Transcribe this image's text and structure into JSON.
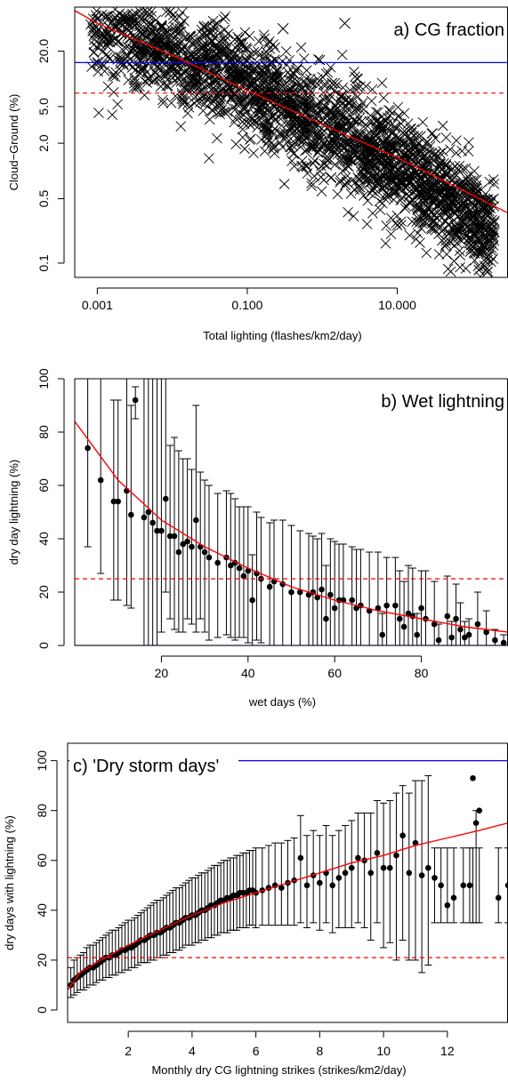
{
  "chart_data": [
    {
      "type": "scatter",
      "title": "a) CG fraction",
      "xlabel": "Total lighting (flashes/km2/day)",
      "ylabel": "Cloud−Ground (%)",
      "xscale": "log",
      "yscale": "log",
      "xlim": [
        0.0005,
        300
      ],
      "ylim": [
        0.07,
        60
      ],
      "xticks": [
        0.001,
        0.1,
        10
      ],
      "xtick_labels": [
        "0.001",
        "0.100",
        "10.000"
      ],
      "yticks": [
        0.1,
        0.5,
        2,
        5,
        20
      ],
      "ytick_labels": [
        "0.1",
        "0.5",
        "2.0",
        "5.0",
        "20.0"
      ],
      "marker": "x",
      "legend": "none",
      "grid": false,
      "reference_lines": [
        {
          "y": 15,
          "color": "#0000ff",
          "style": "solid"
        },
        {
          "y": 7,
          "color": "#ff0000",
          "style": "dashed"
        }
      ],
      "fit_curve": {
        "color": "#ff0000",
        "x": [
          0.0005,
          0.001,
          0.01,
          0.1,
          1,
          10,
          100,
          300
        ],
        "y": [
          55,
          40,
          18,
          7.5,
          3.2,
          1.4,
          0.55,
          0.35
        ]
      },
      "point_cloud": {
        "count": 2500,
        "trend": [
          [
            0.002,
            32
          ],
          [
            0.1,
            8
          ],
          [
            10,
            1.2
          ],
          [
            100,
            0.3
          ]
        ],
        "max_x": 200,
        "note_points": [
          [
            0.003,
            50
          ],
          [
            0.3,
            35
          ],
          [
            2,
            40
          ]
        ]
      }
    },
    {
      "type": "scatter",
      "title": "b) Wet lightning",
      "xlabel": "wet days (%)",
      "ylabel": "dry day lightning (%)",
      "xlim": [
        0,
        100
      ],
      "ylim": [
        0,
        100
      ],
      "xticks": [
        20,
        40,
        60,
        80
      ],
      "yticks": [
        0,
        20,
        40,
        60,
        80,
        100
      ],
      "legend": "none",
      "grid": false,
      "reference_lines": [
        {
          "y": 25,
          "color": "#ff0000",
          "style": "dashed"
        },
        {
          "y": 0,
          "color": "#0000ff",
          "style": "solid"
        }
      ],
      "fit_curve": {
        "color": "#ff0000",
        "x": [
          0,
          10,
          20,
          30,
          40,
          50,
          60,
          70,
          80,
          90,
          100
        ],
        "y": [
          84,
          62,
          47,
          37,
          29,
          22,
          17,
          13,
          10,
          7,
          5
        ]
      },
      "points": {
        "x": [
          3,
          6,
          9,
          10,
          12,
          13,
          14,
          16,
          17,
          18,
          19,
          20,
          21,
          22,
          23,
          24,
          25,
          26,
          27,
          28,
          29,
          30,
          31,
          33,
          35,
          36,
          37,
          38,
          39,
          40,
          41,
          42,
          43,
          45,
          46,
          48,
          50,
          52,
          54,
          55,
          56,
          57,
          58,
          59,
          60,
          61,
          62,
          64,
          65,
          66,
          68,
          70,
          71,
          72,
          74,
          75,
          76,
          77,
          78,
          79,
          80,
          81,
          83,
          84,
          86,
          87,
          88,
          89,
          90,
          91,
          93,
          95,
          97,
          99
        ],
        "y": [
          74,
          62,
          54,
          54,
          58,
          49,
          92,
          48,
          50,
          46,
          43,
          43,
          55,
          41,
          41,
          35,
          38,
          39,
          37,
          47,
          37,
          35,
          33,
          31,
          33,
          30,
          31,
          29,
          26,
          28,
          17,
          27,
          25,
          22,
          24,
          23,
          20,
          20,
          19,
          20,
          18,
          21,
          10,
          19,
          14,
          17,
          17,
          17,
          14,
          15,
          13,
          14,
          4,
          15,
          15,
          10,
          7,
          12,
          11,
          4,
          14,
          10,
          8,
          2,
          11,
          3,
          10,
          6,
          3,
          4,
          8,
          5,
          2,
          1
        ],
        "err_lo": [
          37,
          27,
          17,
          17,
          15,
          14,
          85,
          0,
          0,
          0,
          0,
          5,
          20,
          10,
          6,
          5,
          5,
          10,
          8,
          5,
          10,
          5,
          2,
          3,
          4,
          3,
          2,
          3,
          3,
          1,
          0,
          2,
          1,
          0,
          0,
          0,
          0,
          0,
          0,
          0,
          0,
          0,
          0,
          0,
          0,
          0,
          0,
          0,
          0,
          0,
          0,
          0,
          0,
          0,
          0,
          0,
          0,
          0,
          0,
          0,
          0,
          0,
          0,
          0,
          0,
          0,
          0,
          0,
          0,
          0,
          0,
          0,
          0,
          0
        ],
        "err_hi": [
          100,
          100,
          92,
          92,
          100,
          90,
          97,
          100,
          100,
          100,
          100,
          100,
          100,
          75,
          78,
          73,
          70,
          70,
          66,
          90,
          65,
          62,
          60,
          57,
          58,
          57,
          55,
          52,
          52,
          52,
          34,
          50,
          48,
          46,
          47,
          47,
          45,
          43,
          42,
          41,
          40,
          42,
          30,
          40,
          39,
          38,
          38,
          37,
          36,
          36,
          35,
          35,
          12,
          33,
          33,
          28,
          24,
          30,
          29,
          12,
          28,
          28,
          24,
          8,
          26,
          9,
          23,
          16,
          9,
          10,
          20,
          13,
          6,
          4
        ]
      }
    },
    {
      "type": "scatter",
      "title": "c) 'Dry storm days'",
      "xlabel": "Monthly dry CG lightning strikes (strikes/km2/day)",
      "ylabel": "dry days with lightning (%)",
      "xlim": [
        0.1,
        13.9
      ],
      "ylim": [
        -5,
        107
      ],
      "xticks": [
        2,
        4,
        6,
        8,
        10,
        12
      ],
      "yticks": [
        0,
        20,
        40,
        60,
        80,
        100
      ],
      "legend": "none",
      "grid": false,
      "reference_lines": [
        {
          "y": 100,
          "color": "#0000ff",
          "style": "solid"
        },
        {
          "y": 21,
          "color": "#ff0000",
          "style": "dashed"
        }
      ],
      "fit_curve": {
        "color": "#ff0000",
        "x": [
          0.1,
          0.5,
          1,
          2,
          3,
          4,
          5,
          6,
          7,
          8,
          9,
          10,
          11,
          12,
          13,
          13.9
        ],
        "y": [
          8,
          15,
          19,
          26,
          32,
          38,
          43,
          47,
          51,
          55,
          59,
          62,
          66,
          69,
          72,
          75
        ]
      },
      "points": {
        "x": [
          0.2,
          0.3,
          0.4,
          0.5,
          0.6,
          0.7,
          0.8,
          0.9,
          1.0,
          1.1,
          1.2,
          1.3,
          1.4,
          1.5,
          1.6,
          1.7,
          1.8,
          1.9,
          2.0,
          2.1,
          2.2,
          2.3,
          2.4,
          2.5,
          2.6,
          2.7,
          2.8,
          2.9,
          3.0,
          3.1,
          3.2,
          3.3,
          3.4,
          3.5,
          3.6,
          3.7,
          3.8,
          3.9,
          4.0,
          4.1,
          4.2,
          4.3,
          4.4,
          4.5,
          4.6,
          4.7,
          4.8,
          4.9,
          5.0,
          5.1,
          5.2,
          5.3,
          5.4,
          5.5,
          5.6,
          5.7,
          5.8,
          5.9,
          6.0,
          6.2,
          6.4,
          6.6,
          6.8,
          7.0,
          7.2,
          7.4,
          7.6,
          7.8,
          8.0,
          8.2,
          8.4,
          8.6,
          8.8,
          9.0,
          9.2,
          9.4,
          9.6,
          9.8,
          10.0,
          10.2,
          10.4,
          10.6,
          10.8,
          11.0,
          11.2,
          11.4,
          11.6,
          11.8,
          12.0,
          12.2,
          12.5,
          12.7,
          12.8,
          12.9,
          13.0,
          13.6,
          13.9
        ],
        "y": [
          10,
          12,
          13,
          14,
          15,
          16,
          17,
          17,
          18,
          19,
          20,
          21,
          21,
          22,
          22,
          23,
          24,
          24,
          25,
          25,
          26,
          27,
          28,
          28,
          29,
          30,
          30,
          31,
          31,
          32,
          33,
          33,
          34,
          35,
          35,
          36,
          37,
          37,
          38,
          38,
          39,
          40,
          40,
          41,
          42,
          42,
          43,
          44,
          44,
          45,
          45,
          46,
          46,
          47,
          47,
          47,
          48,
          48,
          47,
          48,
          49,
          50,
          49,
          51,
          52,
          61,
          50,
          54,
          51,
          55,
          50,
          53,
          55,
          57,
          61,
          60,
          55,
          63,
          57,
          57,
          62,
          70,
          55,
          67,
          54,
          57,
          53,
          50,
          42,
          45,
          50,
          50,
          93,
          75,
          80,
          45,
          50
        ],
        "err_lo": [
          5,
          6,
          7,
          8,
          8,
          9,
          10,
          10,
          11,
          12,
          12,
          13,
          13,
          14,
          14,
          15,
          15,
          16,
          16,
          17,
          17,
          18,
          19,
          19,
          19,
          20,
          20,
          21,
          21,
          22,
          22,
          23,
          23,
          24,
          24,
          25,
          26,
          26,
          26,
          27,
          27,
          28,
          28,
          29,
          29,
          30,
          30,
          31,
          31,
          31,
          32,
          32,
          32,
          33,
          33,
          33,
          34,
          34,
          33,
          34,
          34,
          34,
          34,
          34,
          34,
          35,
          33,
          35,
          32,
          35,
          31,
          33,
          33,
          33,
          35,
          33,
          28,
          35,
          25,
          27,
          20,
          28,
          20,
          20,
          15,
          18,
          35,
          35,
          35,
          35,
          35,
          35,
          35,
          35,
          35,
          35,
          35
        ],
        "err_hi": [
          17,
          20,
          21,
          22,
          23,
          25,
          26,
          26,
          27,
          28,
          29,
          30,
          31,
          32,
          32,
          33,
          34,
          35,
          36,
          36,
          37,
          38,
          39,
          40,
          41,
          42,
          43,
          44,
          44,
          45,
          46,
          47,
          48,
          49,
          49,
          50,
          51,
          52,
          53,
          53,
          54,
          55,
          55,
          56,
          57,
          58,
          58,
          59,
          60,
          60,
          61,
          61,
          62,
          62,
          63,
          63,
          64,
          64,
          65,
          65,
          66,
          67,
          67,
          68,
          69,
          78,
          70,
          72,
          70,
          74,
          70,
          72,
          74,
          76,
          79,
          79,
          79,
          84,
          83,
          84,
          87,
          90,
          87,
          92,
          92,
          94,
          65,
          65,
          65,
          65,
          65,
          65,
          65,
          80,
          65,
          65,
          65
        ]
      }
    }
  ]
}
